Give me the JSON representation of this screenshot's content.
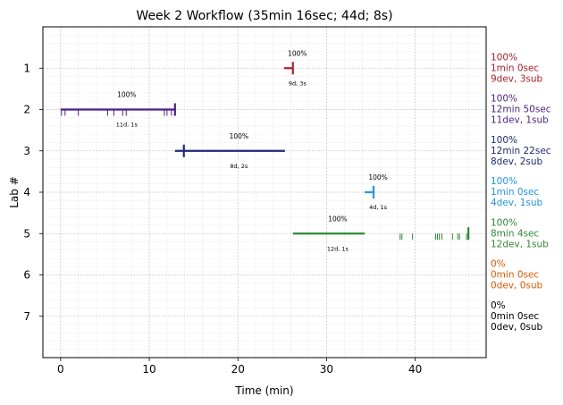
{
  "chart_data": {
    "type": "timeline",
    "title": "Week 2 Workflow (35min 16sec; 44d; 8s)",
    "xlabel": "Time (min)",
    "ylabel": "Lab #",
    "xlim": [
      -2,
      48
    ],
    "ylim": [
      8,
      0
    ],
    "x_ticks": [
      0,
      10,
      20,
      30,
      40
    ],
    "x_tick_labels": [
      "0",
      "10",
      "20",
      "30",
      "40"
    ],
    "y_ticks": [
      1,
      2,
      3,
      4,
      5,
      6,
      7
    ],
    "y_tick_labels": [
      "1",
      "2",
      "3",
      "4",
      "5",
      "6",
      "7"
    ],
    "grid": true,
    "labs": [
      {
        "lab": 1,
        "color": "#b22028",
        "start": 25.2,
        "end": 26.2,
        "dev_marks": [],
        "sub_marks": [
          26.2
        ],
        "pct_label": "100%",
        "count_label": "9d, 3s",
        "summary": [
          "100%",
          "1min 0sec",
          "9dev, 3sub"
        ]
      },
      {
        "lab": 2,
        "color": "#4b1f8c",
        "start": 0,
        "end": 12.9,
        "dev_marks": [
          0.1,
          0.5,
          2.0,
          5.3,
          6.0,
          7.0,
          7.4,
          11.7,
          12.0,
          12.5,
          12.9
        ],
        "sub_marks": [
          12.9
        ],
        "pct_label": "100%",
        "count_label": "11d, 1s",
        "summary": [
          "100%",
          "12min 50sec",
          "11dev, 1sub"
        ]
      },
      {
        "lab": 3,
        "color": "#1f2a78",
        "start": 12.9,
        "end": 25.3,
        "dev_marks": [],
        "sub_marks": [
          13.9
        ],
        "pct_label": "100%",
        "count_label": "8d, 2s",
        "summary": [
          "100%",
          "12min 22sec",
          "8dev, 2sub"
        ]
      },
      {
        "lab": 4,
        "color": "#2196f3",
        "start": 34.3,
        "end": 35.3,
        "dev_marks": [],
        "sub_marks": [
          35.3
        ],
        "pct_label": "100%",
        "count_label": "4d, 1s",
        "summary": [
          "100%",
          "1min 0sec",
          "4dev, 1sub"
        ]
      },
      {
        "lab": 5,
        "color": "#2e8b35",
        "start": 26.2,
        "end": 34.3,
        "dev_marks": [
          38.3,
          38.5,
          39.7,
          42.3,
          42.5,
          42.7,
          43.0,
          44.2,
          44.8,
          45.0,
          45.8
        ],
        "sub_marks": [
          46.0
        ],
        "pct_label": "100%",
        "count_label": "12d, 1s",
        "summary": [
          "100%",
          "8min 4sec",
          "12dev, 1sub"
        ]
      },
      {
        "lab": 6,
        "color": "#e05a00",
        "start": null,
        "end": null,
        "dev_marks": [],
        "sub_marks": [],
        "pct_label": "",
        "count_label": "",
        "summary": [
          "0%",
          "0min 0sec",
          "0dev, 0sub"
        ]
      },
      {
        "lab": 7,
        "color": "#000000",
        "start": null,
        "end": null,
        "dev_marks": [],
        "sub_marks": [],
        "pct_label": "",
        "count_label": "",
        "summary": [
          "0%",
          "0min 0sec",
          "0dev, 0sub"
        ]
      }
    ]
  }
}
